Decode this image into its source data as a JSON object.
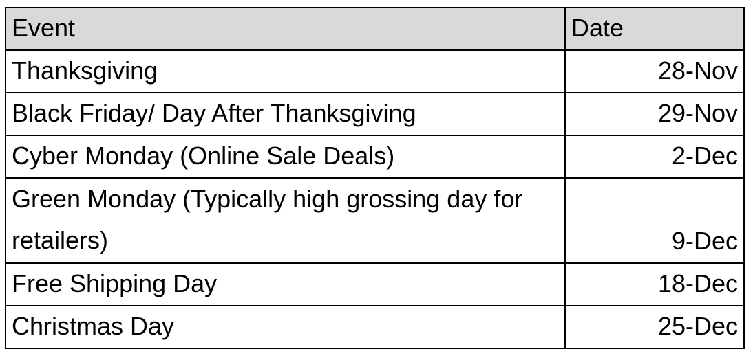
{
  "table": {
    "headers": {
      "event": "Event",
      "date": "Date"
    },
    "rows": [
      {
        "event": "Thanksgiving",
        "date": "28-Nov"
      },
      {
        "event": "Black Friday/ Day After Thanksgiving",
        "date": "29-Nov"
      },
      {
        "event": "Cyber Monday (Online Sale Deals)",
        "date": "2-Dec"
      },
      {
        "event": "Green Monday (Typically high grossing day for retailers)",
        "date": "9-Dec"
      },
      {
        "event": "Free Shipping Day",
        "date": "18-Dec"
      },
      {
        "event": "Christmas Day",
        "date": "25-Dec"
      }
    ],
    "header_bg": "#d9d9d9"
  }
}
